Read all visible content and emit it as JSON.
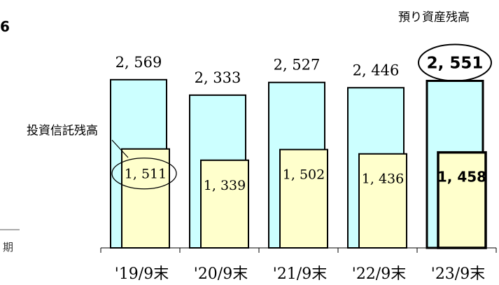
{
  "page": {
    "corner_number": "6",
    "corner_label": "期"
  },
  "chart_data": {
    "type": "bar",
    "categories": [
      "'19/9末",
      "'20/9末",
      "'21/9末",
      "'22/9末",
      "'23/9末"
    ],
    "series": [
      {
        "name": "預り資産残高",
        "values": [
          2569,
          2333,
          2527,
          2446,
          2551
        ],
        "labels": [
          "2, 569",
          "2, 333",
          "2, 527",
          "2, 446",
          "2, 551"
        ],
        "color": "#ccffff"
      },
      {
        "name": "投資信託残高",
        "values": [
          1511,
          1339,
          1502,
          1436,
          1458
        ],
        "labels": [
          "1, 511",
          "1, 339",
          "1, 502",
          "1, 436",
          "1, 458"
        ],
        "color": "#ffffcc"
      }
    ],
    "highlight_index": 4,
    "ylim": [
      0,
      3000
    ],
    "grid": false,
    "legend": "callouts"
  }
}
